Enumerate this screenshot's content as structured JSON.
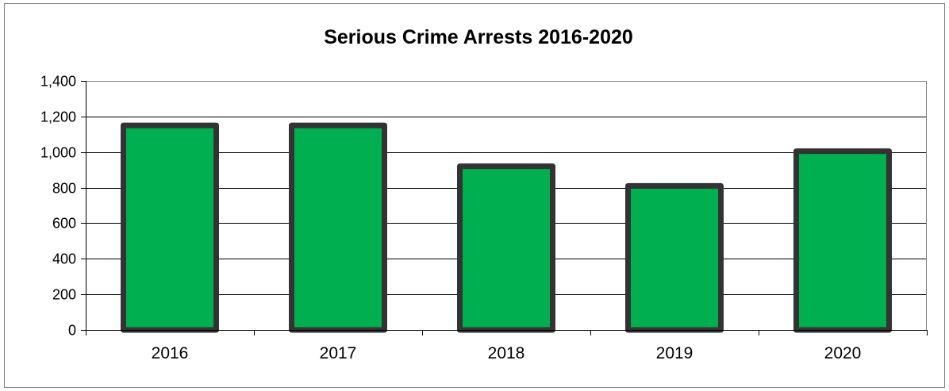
{
  "chart_data": {
    "type": "bar",
    "title": "Serious Crime Arrests 2016-2020",
    "xlabel": "",
    "ylabel": "",
    "categories": [
      "2016",
      "2017",
      "2018",
      "2019",
      "2020"
    ],
    "values": [
      1150,
      1150,
      920,
      810,
      1005
    ],
    "ylim": [
      0,
      1400
    ],
    "yticks": [
      0,
      200,
      400,
      600,
      800,
      1000,
      1200,
      1400
    ],
    "ytick_labels": [
      "0",
      "200",
      "400",
      "600",
      "800",
      "1,000",
      "1,200",
      "1,400"
    ],
    "grid": true,
    "legend": "none",
    "colors": {
      "bar_fill": "#00B050",
      "bar_stroke": "#333333",
      "grid": "#000000",
      "plot_border": "#808080",
      "frame": "#808080"
    }
  }
}
